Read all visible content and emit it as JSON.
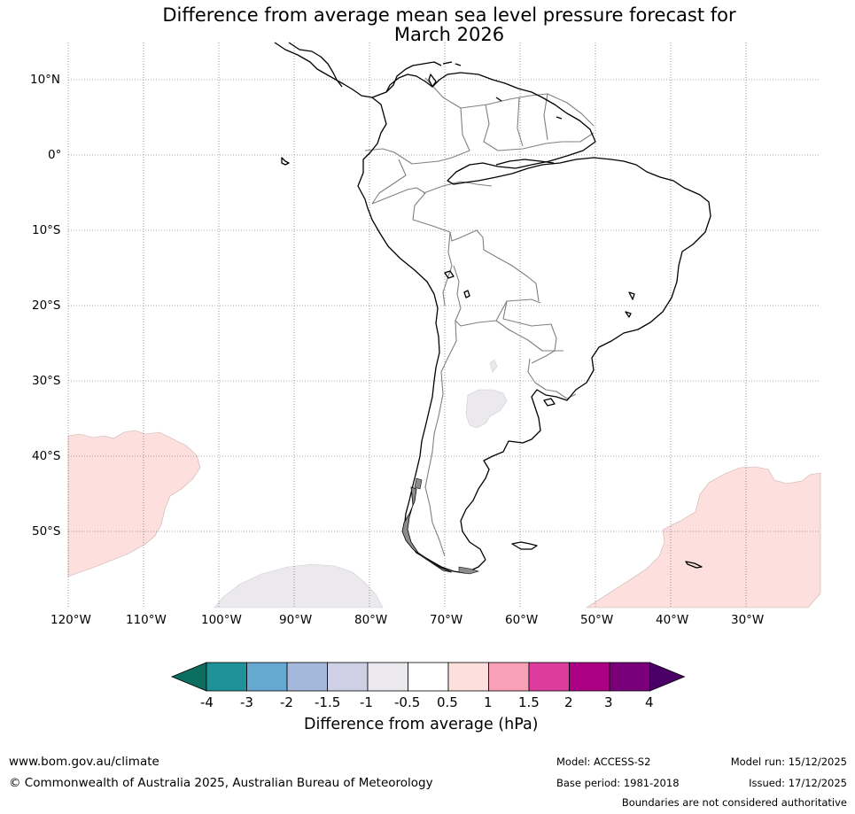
{
  "title": {
    "line1": "Difference from average mean sea level pressure forecast for",
    "line2": "March 2026"
  },
  "map": {
    "lat_labels": [
      "10°N",
      "0°",
      "10°S",
      "20°S",
      "30°S",
      "40°S",
      "50°S"
    ],
    "lon_labels": [
      "120°W",
      "110°W",
      "100°W",
      "90°W",
      "80°W",
      "70°W",
      "60°W",
      "50°W",
      "40°W",
      "30°W"
    ],
    "anomaly_regions": [
      {
        "region": "south-east-pacific",
        "class": "0.5 to 1",
        "color": "#fde0dd"
      },
      {
        "region": "south-west-atlantic",
        "class": "0.5 to 1",
        "color": "#fde0dd"
      },
      {
        "region": "southern-ocean-pacific",
        "class": "-1 to -0.5",
        "color": "#ebe9ee"
      },
      {
        "region": "argentina-interior",
        "class": "-1 to -0.5",
        "color": "#ebe9ee"
      }
    ]
  },
  "colorbar": {
    "label": "Difference from average (hPa)",
    "tick_labels": [
      "-4",
      "-3",
      "-2",
      "-1.5",
      "-1",
      "-0.5",
      "0.5",
      "1",
      "1.5",
      "2",
      "3",
      "4"
    ],
    "below_color": "#0c6e5e",
    "above_color": "#4a0067",
    "colors": [
      "#1f9299",
      "#65a9d0",
      "#a3b8da",
      "#cfd0e6",
      "#ebe9ee",
      "#ffffff",
      "#fde0dd",
      "#f9a0b9",
      "#de3c9d",
      "#ab0084",
      "#790079"
    ]
  },
  "footer": {
    "website": "www.bom.gov.au/climate",
    "copyright": "© Commonwealth of Australia 2025, Australian Bureau of Meteorology",
    "model": "Model: ACCESS-S2",
    "base_period": "Base period: 1981-2018",
    "model_run": "Model run: 15/12/2025",
    "issued": "Issued: 17/12/2025",
    "disclaimer": "Boundaries are not considered authoritative"
  }
}
